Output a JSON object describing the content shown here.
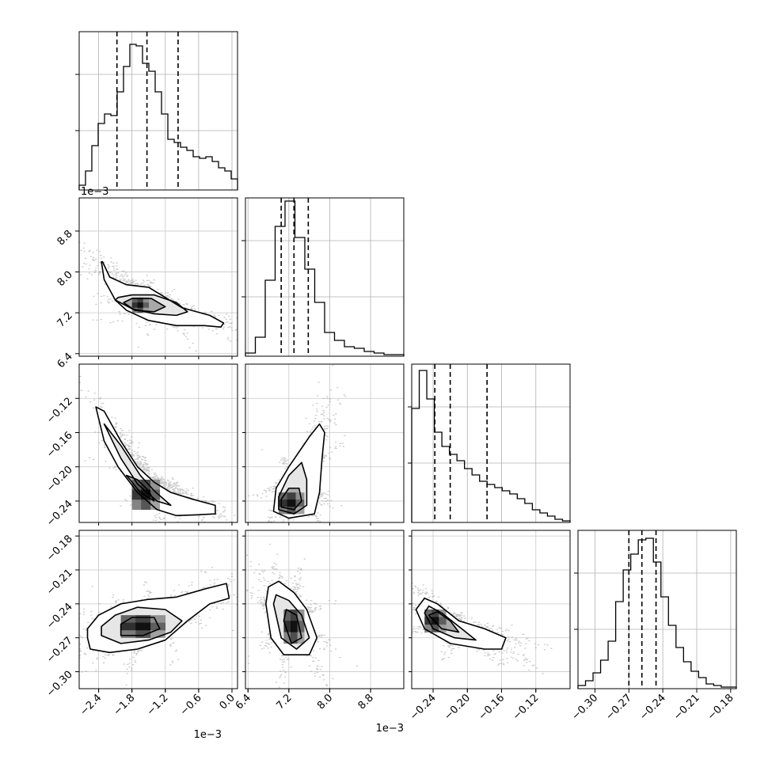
{
  "chart_data": {
    "type": "scatter",
    "subtype": "corner-plot",
    "grid": true,
    "parameters": [
      {
        "range": [
          -2.75,
          0.1
        ],
        "ticks": [
          -2.4,
          -1.8,
          -1.2,
          -0.6,
          0.0
        ],
        "tick_labels": [
          "−2.4",
          "−1.8",
          "−1.2",
          "−0.6",
          "0.0"
        ],
        "offset_label": "1e−3",
        "quantiles": [
          -2.07,
          -1.53,
          -0.97
        ]
      },
      {
        "range": [
          6.35,
          9.45
        ],
        "ticks": [
          6.4,
          7.2,
          8.0,
          8.8
        ],
        "tick_labels": [
          "6.4",
          "7.2",
          "8.0",
          "8.8"
        ],
        "offset_label": "1e−3",
        "quantiles": [
          7.05,
          7.3,
          7.58
        ]
      },
      {
        "range": [
          -0.265,
          -0.08
        ],
        "ticks": [
          -0.24,
          -0.2,
          -0.16,
          -0.12
        ],
        "tick_labels": [
          "−0.24",
          "−0.20",
          "−0.16",
          "−0.12"
        ],
        "quantiles": [
          -0.238,
          -0.22,
          -0.177
        ]
      },
      {
        "range": [
          -0.315,
          -0.175
        ],
        "ticks": [
          -0.3,
          -0.27,
          -0.24,
          -0.21,
          -0.18
        ],
        "tick_labels": [
          "−0.30",
          "−0.27",
          "−0.24",
          "−0.21",
          "−0.18"
        ],
        "quantiles": [
          -0.27,
          -0.2585,
          -0.246
        ]
      }
    ],
    "histograms": [
      [
        0.03,
        0.12,
        0.28,
        0.42,
        0.48,
        0.47,
        0.62,
        0.78,
        0.92,
        0.91,
        0.8,
        0.75,
        0.62,
        0.48,
        0.32,
        0.3,
        0.27,
        0.25,
        0.21,
        0.2,
        0.21,
        0.18,
        0.14,
        0.12,
        0.07
      ],
      [
        0.02,
        0.12,
        0.48,
        0.82,
        0.98,
        0.75,
        0.55,
        0.34,
        0.15,
        0.1,
        0.06,
        0.05,
        0.03,
        0.02,
        0.01,
        0.01
      ],
      [
        0.72,
        0.96,
        0.78,
        0.57,
        0.48,
        0.43,
        0.39,
        0.34,
        0.3,
        0.26,
        0.24,
        0.22,
        0.2,
        0.18,
        0.15,
        0.12,
        0.08,
        0.06,
        0.04,
        0.02,
        0.01
      ],
      [
        0.02,
        0.05,
        0.1,
        0.18,
        0.3,
        0.55,
        0.75,
        0.85,
        0.94,
        0.95,
        0.8,
        0.58,
        0.4,
        0.26,
        0.17,
        0.11,
        0.07,
        0.03,
        0.02,
        0.01,
        0.01
      ]
    ],
    "pairs": [
      {
        "x": 0,
        "y": 1,
        "outer": [
          [
            -2.35,
            8.2
          ],
          [
            -2.3,
            7.85
          ],
          [
            -2.1,
            7.45
          ],
          [
            -1.9,
            7.25
          ],
          [
            -1.5,
            7.05
          ],
          [
            -1.0,
            6.95
          ],
          [
            -0.5,
            6.95
          ],
          [
            -0.2,
            6.92
          ],
          [
            -0.15,
            7.0
          ],
          [
            -0.4,
            7.15
          ],
          [
            -0.9,
            7.3
          ],
          [
            -1.2,
            7.5
          ],
          [
            -1.5,
            7.7
          ],
          [
            -1.9,
            7.75
          ],
          [
            -2.2,
            7.9
          ],
          [
            -2.33,
            8.2
          ]
        ],
        "mid": [
          [
            -2.1,
            7.45
          ],
          [
            -1.8,
            7.28
          ],
          [
            -1.4,
            7.18
          ],
          [
            -1.0,
            7.15
          ],
          [
            -0.8,
            7.22
          ],
          [
            -1.0,
            7.4
          ],
          [
            -1.4,
            7.55
          ],
          [
            -1.8,
            7.55
          ],
          [
            -2.05,
            7.5
          ]
        ],
        "inner": [
          [
            -1.95,
            7.4
          ],
          [
            -1.75,
            7.25
          ],
          [
            -1.4,
            7.22
          ],
          [
            -1.2,
            7.32
          ],
          [
            -1.45,
            7.48
          ],
          [
            -1.8,
            7.48
          ]
        ],
        "core_x": [
          -1.8,
          -1.5
        ],
        "core_y": [
          7.2,
          7.5
        ]
      },
      {
        "x": 0,
        "y": 2,
        "outer": [
          [
            -2.45,
            -0.13
          ],
          [
            -2.3,
            -0.17
          ],
          [
            -2.05,
            -0.2
          ],
          [
            -1.7,
            -0.23
          ],
          [
            -1.35,
            -0.25
          ],
          [
            -1.0,
            -0.257
          ],
          [
            -0.6,
            -0.256
          ],
          [
            -0.3,
            -0.255
          ],
          [
            -0.3,
            -0.245
          ],
          [
            -0.7,
            -0.238
          ],
          [
            -1.1,
            -0.23
          ],
          [
            -1.4,
            -0.218
          ],
          [
            -1.7,
            -0.2
          ],
          [
            -2.0,
            -0.17
          ],
          [
            -2.3,
            -0.135
          ]
        ],
        "mid": [
          [
            -2.3,
            -0.15
          ],
          [
            -2.0,
            -0.19
          ],
          [
            -1.7,
            -0.22
          ],
          [
            -1.35,
            -0.24
          ],
          [
            -1.1,
            -0.245
          ],
          [
            -1.4,
            -0.228
          ],
          [
            -1.65,
            -0.21
          ],
          [
            -2.0,
            -0.175
          ]
        ],
        "inner": [
          [
            -1.9,
            -0.21
          ],
          [
            -1.65,
            -0.23
          ],
          [
            -1.4,
            -0.24
          ],
          [
            -1.5,
            -0.228
          ],
          [
            -1.7,
            -0.215
          ]
        ],
        "core_x": [
          -1.8,
          -1.3
        ],
        "core_y": [
          -0.25,
          -0.215
        ]
      },
      {
        "x": 1,
        "y": 2,
        "outer": [
          [
            6.9,
            -0.252
          ],
          [
            7.2,
            -0.26
          ],
          [
            7.7,
            -0.255
          ],
          [
            7.8,
            -0.23
          ],
          [
            7.85,
            -0.19
          ],
          [
            7.9,
            -0.16
          ],
          [
            7.8,
            -0.15
          ],
          [
            7.6,
            -0.165
          ],
          [
            7.2,
            -0.2
          ],
          [
            6.95,
            -0.225
          ]
        ],
        "mid": [
          [
            7.0,
            -0.25
          ],
          [
            7.3,
            -0.255
          ],
          [
            7.55,
            -0.245
          ],
          [
            7.55,
            -0.215
          ],
          [
            7.45,
            -0.195
          ],
          [
            7.2,
            -0.21
          ],
          [
            7.0,
            -0.235
          ]
        ],
        "inner": [
          [
            7.05,
            -0.247
          ],
          [
            7.3,
            -0.25
          ],
          [
            7.45,
            -0.24
          ],
          [
            7.4,
            -0.225
          ],
          [
            7.2,
            -0.225
          ],
          [
            7.05,
            -0.238
          ]
        ],
        "core_x": [
          7.0,
          7.5
        ],
        "core_y": [
          -0.255,
          -0.23
        ]
      },
      {
        "x": 0,
        "y": 3,
        "outer": [
          [
            -2.6,
            -0.27
          ],
          [
            -2.55,
            -0.28
          ],
          [
            -2.2,
            -0.283
          ],
          [
            -1.7,
            -0.28
          ],
          [
            -1.2,
            -0.272
          ],
          [
            -0.8,
            -0.255
          ],
          [
            -0.4,
            -0.24
          ],
          [
            -0.05,
            -0.235
          ],
          [
            -0.1,
            -0.222
          ],
          [
            -0.5,
            -0.227
          ],
          [
            -1.0,
            -0.234
          ],
          [
            -1.5,
            -0.236
          ],
          [
            -2.0,
            -0.24
          ],
          [
            -2.4,
            -0.25
          ],
          [
            -2.6,
            -0.262
          ]
        ],
        "mid": [
          [
            -2.35,
            -0.268
          ],
          [
            -2.0,
            -0.275
          ],
          [
            -1.5,
            -0.272
          ],
          [
            -1.1,
            -0.265
          ],
          [
            -0.9,
            -0.255
          ],
          [
            -1.2,
            -0.245
          ],
          [
            -1.7,
            -0.243
          ],
          [
            -2.1,
            -0.25
          ],
          [
            -2.35,
            -0.26
          ]
        ],
        "inner": [
          [
            -2.0,
            -0.268
          ],
          [
            -1.6,
            -0.268
          ],
          [
            -1.3,
            -0.262
          ],
          [
            -1.4,
            -0.252
          ],
          [
            -1.8,
            -0.252
          ],
          [
            -2.0,
            -0.258
          ]
        ],
        "core_x": [
          -2.0,
          -1.2
        ],
        "core_y": [
          -0.27,
          -0.25
        ]
      },
      {
        "x": 1,
        "y": 3,
        "outer": [
          [
            6.75,
            -0.24
          ],
          [
            6.85,
            -0.27
          ],
          [
            7.1,
            -0.285
          ],
          [
            7.6,
            -0.285
          ],
          [
            7.75,
            -0.27
          ],
          [
            7.55,
            -0.245
          ],
          [
            7.3,
            -0.23
          ],
          [
            7.0,
            -0.22
          ],
          [
            6.8,
            -0.225
          ]
        ],
        "mid": [
          [
            6.9,
            -0.24
          ],
          [
            7.05,
            -0.27
          ],
          [
            7.35,
            -0.28
          ],
          [
            7.6,
            -0.27
          ],
          [
            7.45,
            -0.25
          ],
          [
            7.2,
            -0.237
          ],
          [
            6.95,
            -0.232
          ]
        ],
        "inner": [
          [
            7.1,
            -0.255
          ],
          [
            7.25,
            -0.275
          ],
          [
            7.45,
            -0.27
          ],
          [
            7.35,
            -0.25
          ],
          [
            7.15,
            -0.245
          ]
        ],
        "core_x": [
          7.1,
          7.5
        ],
        "core_y": [
          -0.275,
          -0.245
        ]
      },
      {
        "x": 2,
        "y": 3,
        "outer": [
          [
            -0.26,
            -0.245
          ],
          [
            -0.25,
            -0.262
          ],
          [
            -0.22,
            -0.275
          ],
          [
            -0.18,
            -0.28
          ],
          [
            -0.16,
            -0.28
          ],
          [
            -0.155,
            -0.27
          ],
          [
            -0.18,
            -0.262
          ],
          [
            -0.21,
            -0.255
          ],
          [
            -0.235,
            -0.24
          ],
          [
            -0.25,
            -0.235
          ]
        ],
        "mid": [
          [
            -0.25,
            -0.248
          ],
          [
            -0.24,
            -0.262
          ],
          [
            -0.215,
            -0.27
          ],
          [
            -0.19,
            -0.272
          ],
          [
            -0.21,
            -0.26
          ],
          [
            -0.23,
            -0.248
          ],
          [
            -0.245,
            -0.242
          ]
        ],
        "inner": [
          [
            -0.245,
            -0.25
          ],
          [
            -0.23,
            -0.262
          ],
          [
            -0.21,
            -0.265
          ],
          [
            -0.22,
            -0.255
          ],
          [
            -0.235,
            -0.247
          ]
        ],
        "core_x": [
          -0.25,
          -0.225
        ],
        "core_y": [
          -0.265,
          -0.245
        ]
      }
    ]
  }
}
